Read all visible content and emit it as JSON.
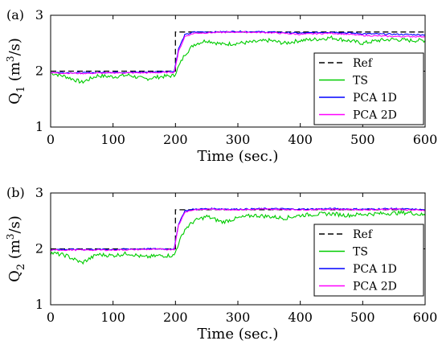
{
  "chart_data": [
    {
      "type": "line",
      "panel_label": "(a)",
      "xlabel": "Time (sec.)",
      "ylabel": "Q_1 (m^3/s)",
      "ylabel_base": "Q",
      "ylabel_sub": "1",
      "ylabel_unit_open": "(m",
      "ylabel_unit_sup": "3",
      "ylabel_unit_close": "/s)",
      "xlim": [
        0,
        600
      ],
      "ylim": [
        1,
        3
      ],
      "xticks": [
        0,
        100,
        200,
        300,
        400,
        500,
        600
      ],
      "yticks": [
        1,
        2,
        3
      ],
      "grid": false,
      "legend_position": "right-center",
      "step_time": 200,
      "series": [
        {
          "name": "Ref",
          "color": "#000000",
          "style": "dashed",
          "x": [
            0,
            200,
            200,
            600
          ],
          "values": [
            2.0,
            2.0,
            2.7,
            2.7
          ]
        },
        {
          "name": "TS",
          "color": "#00cc00",
          "style": "solid",
          "x": [
            0,
            25,
            50,
            75,
            100,
            125,
            150,
            175,
            198,
            205,
            215,
            230,
            250,
            275,
            300,
            325,
            350,
            375,
            400,
            425,
            450,
            475,
            500,
            525,
            550,
            575,
            600
          ],
          "values": [
            1.97,
            1.9,
            1.8,
            1.92,
            1.9,
            1.93,
            1.86,
            1.9,
            1.92,
            2.08,
            2.3,
            2.48,
            2.55,
            2.48,
            2.5,
            2.52,
            2.55,
            2.5,
            2.55,
            2.57,
            2.6,
            2.55,
            2.5,
            2.55,
            2.57,
            2.55,
            2.55
          ]
        },
        {
          "name": "PCA 1D",
          "color": "#0000ff",
          "style": "solid",
          "x": [
            0,
            50,
            100,
            150,
            198,
            205,
            215,
            230,
            260,
            300,
            350,
            400,
            450,
            500,
            550,
            600
          ],
          "values": [
            1.98,
            1.97,
            1.98,
            1.98,
            2.0,
            2.4,
            2.65,
            2.7,
            2.7,
            2.71,
            2.7,
            2.68,
            2.7,
            2.67,
            2.66,
            2.65
          ]
        },
        {
          "name": "PCA 2D",
          "color": "#ff00ff",
          "style": "solid",
          "x": [
            0,
            50,
            100,
            150,
            198,
            205,
            215,
            230,
            260,
            300,
            350,
            400,
            450,
            500,
            550,
            600
          ],
          "values": [
            1.97,
            1.96,
            1.97,
            1.97,
            1.98,
            2.35,
            2.62,
            2.68,
            2.69,
            2.7,
            2.69,
            2.66,
            2.68,
            2.64,
            2.62,
            2.62
          ]
        }
      ]
    },
    {
      "type": "line",
      "panel_label": "(b)",
      "xlabel": "Time (sec.)",
      "ylabel": "Q_2 (m^3/s)",
      "ylabel_base": "Q",
      "ylabel_sub": "2",
      "ylabel_unit_open": "(m",
      "ylabel_unit_sup": "3",
      "ylabel_unit_close": "/s)",
      "xlim": [
        0,
        600
      ],
      "ylim": [
        1,
        3
      ],
      "xticks": [
        0,
        100,
        200,
        300,
        400,
        500,
        600
      ],
      "yticks": [
        1,
        2,
        3
      ],
      "grid": false,
      "legend_position": "right-center",
      "step_time": 200,
      "series": [
        {
          "name": "Ref",
          "color": "#000000",
          "style": "dashed",
          "x": [
            0,
            200,
            200,
            600
          ],
          "values": [
            2.0,
            2.0,
            2.7,
            2.7
          ]
        },
        {
          "name": "TS",
          "color": "#00cc00",
          "style": "solid",
          "x": [
            0,
            25,
            50,
            75,
            100,
            125,
            150,
            175,
            198,
            205,
            215,
            230,
            250,
            275,
            300,
            325,
            350,
            375,
            400,
            425,
            450,
            475,
            500,
            525,
            550,
            575,
            600
          ],
          "values": [
            1.93,
            1.88,
            1.75,
            1.9,
            1.88,
            1.92,
            1.85,
            1.88,
            1.88,
            2.1,
            2.35,
            2.5,
            2.58,
            2.48,
            2.55,
            2.6,
            2.58,
            2.55,
            2.6,
            2.62,
            2.63,
            2.6,
            2.62,
            2.63,
            2.64,
            2.65,
            2.6
          ]
        },
        {
          "name": "PCA 1D",
          "color": "#0000ff",
          "style": "solid",
          "x": [
            0,
            50,
            100,
            150,
            198,
            205,
            215,
            230,
            260,
            300,
            350,
            400,
            450,
            500,
            550,
            600
          ],
          "values": [
            1.99,
            1.99,
            1.99,
            2.0,
            2.0,
            2.45,
            2.68,
            2.71,
            2.72,
            2.71,
            2.72,
            2.71,
            2.72,
            2.71,
            2.72,
            2.7
          ]
        },
        {
          "name": "PCA 2D",
          "color": "#ff00ff",
          "style": "solid",
          "x": [
            0,
            50,
            100,
            150,
            198,
            205,
            215,
            230,
            260,
            300,
            350,
            400,
            450,
            500,
            550,
            600
          ],
          "values": [
            1.98,
            1.98,
            1.98,
            1.99,
            1.99,
            2.42,
            2.66,
            2.7,
            2.71,
            2.7,
            2.71,
            2.7,
            2.71,
            2.7,
            2.71,
            2.69
          ]
        }
      ]
    }
  ]
}
